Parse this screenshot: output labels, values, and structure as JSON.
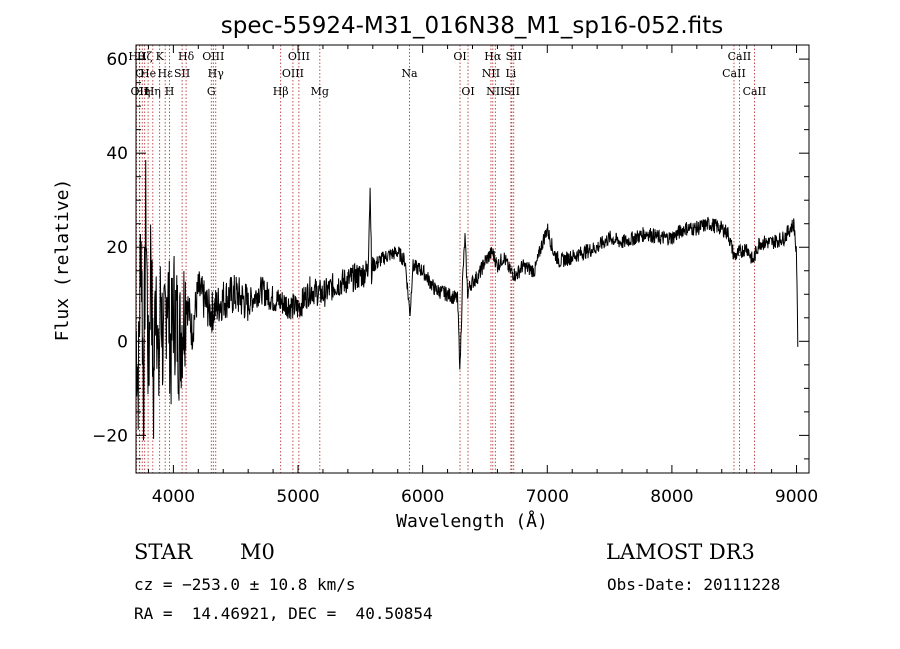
{
  "chart_data": {
    "type": "line",
    "title": "spec-55924-M31_016N38_M1_sp16-052.fits",
    "xlabel": "Wavelength (Å)",
    "ylabel": "Flux (relative)",
    "xlim": [
      3700,
      9100
    ],
    "ylim": [
      -28,
      63
    ],
    "xticks": [
      4000,
      5000,
      6000,
      7000,
      8000,
      9000
    ],
    "xtick_labels": [
      "4000",
      "5000",
      "6000",
      "7000",
      "8000",
      "9000"
    ],
    "yticks": [
      -20,
      0,
      20,
      40,
      60
    ],
    "ytick_labels": [
      "−20",
      "0",
      "20",
      "40",
      "60"
    ],
    "lines": [
      {
        "label": "Hθ",
        "wavelength": 3704,
        "row": 0
      },
      {
        "label": "OII",
        "wavelength": 3727,
        "row": 2
      },
      {
        "label": "O",
        "wavelength": 3730,
        "row": 1
      },
      {
        "label": "Hη",
        "wavelength": 3750,
        "row": 2
      },
      {
        "label": "Hζ",
        "wavelength": 3770,
        "row": 0
      },
      {
        "label": "He",
        "wavelength": 3797,
        "row": 1
      },
      {
        "label": "Hη",
        "wavelength": 3835,
        "row": 2
      },
      {
        "label": "K",
        "wavelength": 3890,
        "row": 0
      },
      {
        "label": "Hε",
        "wavelength": 3934,
        "row": 1
      },
      {
        "label": "H",
        "wavelength": 3969,
        "row": 2
      },
      {
        "label": "SII",
        "wavelength": 4070,
        "row": 1
      },
      {
        "label": "Hδ",
        "wavelength": 4102,
        "row": 0
      },
      {
        "label": "G",
        "wavelength": 4304,
        "row": 2
      },
      {
        "label": "OIII",
        "wavelength": 4320,
        "row": 0
      },
      {
        "label": "Hγ",
        "wavelength": 4340,
        "row": 1
      },
      {
        "label": "Hβ",
        "wavelength": 4861,
        "row": 2
      },
      {
        "label": "OIII",
        "wavelength": 4959,
        "row": 1
      },
      {
        "label": "OIII",
        "wavelength": 5007,
        "row": 0
      },
      {
        "label": "Mg",
        "wavelength": 5175,
        "row": 2
      },
      {
        "label": "Na",
        "wavelength": 5894,
        "row": 1
      },
      {
        "label": "OI",
        "wavelength": 6300,
        "row": 0
      },
      {
        "label": "OI",
        "wavelength": 6364,
        "row": 2
      },
      {
        "label": "NII",
        "wavelength": 6548,
        "row": 1
      },
      {
        "label": "Hα",
        "wavelength": 6563,
        "row": 0
      },
      {
        "label": "NII",
        "wavelength": 6583,
        "row": 2
      },
      {
        "label": "SII",
        "wavelength": 6716,
        "row": 2
      },
      {
        "label": "Li",
        "wavelength": 6708,
        "row": 1
      },
      {
        "label": "SII",
        "wavelength": 6731,
        "row": 0
      },
      {
        "label": "CaII",
        "wavelength": 8498,
        "row": 1
      },
      {
        "label": "CaII",
        "wavelength": 8542,
        "row": 0
      },
      {
        "label": "CaII",
        "wavelength": 8662,
        "row": 2
      }
    ],
    "spectrum_anchors": [
      [
        3700,
        2
      ],
      [
        3720,
        -8
      ],
      [
        3740,
        25
      ],
      [
        3760,
        -12
      ],
      [
        3780,
        30
      ],
      [
        3800,
        -10
      ],
      [
        3820,
        22
      ],
      [
        3840,
        -15
      ],
      [
        3860,
        18
      ],
      [
        3880,
        -10
      ],
      [
        3900,
        12
      ],
      [
        3920,
        -5
      ],
      [
        3950,
        14
      ],
      [
        3980,
        -3
      ],
      [
        4000,
        8
      ],
      [
        4050,
        0
      ],
      [
        4100,
        10
      ],
      [
        4150,
        2
      ],
      [
        4200,
        11
      ],
      [
        4300,
        6
      ],
      [
        4400,
        9
      ],
      [
        4500,
        10
      ],
      [
        4600,
        8
      ],
      [
        4700,
        11
      ],
      [
        4800,
        9
      ],
      [
        4900,
        8
      ],
      [
        5000,
        7
      ],
      [
        5100,
        11
      ],
      [
        5200,
        10
      ],
      [
        5300,
        12
      ],
      [
        5400,
        13
      ],
      [
        5500,
        14
      ],
      [
        5560,
        15
      ],
      [
        5580,
        34
      ],
      [
        5590,
        13
      ],
      [
        5600,
        16
      ],
      [
        5700,
        18
      ],
      [
        5800,
        19
      ],
      [
        5860,
        17
      ],
      [
        5890,
        8
      ],
      [
        5900,
        6
      ],
      [
        5920,
        16
      ],
      [
        6000,
        15
      ],
      [
        6100,
        11
      ],
      [
        6200,
        10
      ],
      [
        6280,
        9
      ],
      [
        6300,
        -6
      ],
      [
        6320,
        13
      ],
      [
        6340,
        22
      ],
      [
        6360,
        10
      ],
      [
        6380,
        12
      ],
      [
        6450,
        14
      ],
      [
        6500,
        17
      ],
      [
        6560,
        19
      ],
      [
        6600,
        16
      ],
      [
        6650,
        18
      ],
      [
        6700,
        15
      ],
      [
        6750,
        14
      ],
      [
        6800,
        16
      ],
      [
        6900,
        15
      ],
      [
        6950,
        20
      ],
      [
        7000,
        24
      ],
      [
        7050,
        19
      ],
      [
        7100,
        17
      ],
      [
        7200,
        18
      ],
      [
        7300,
        19
      ],
      [
        7400,
        20
      ],
      [
        7500,
        22
      ],
      [
        7600,
        21
      ],
      [
        7700,
        22
      ],
      [
        7800,
        23
      ],
      [
        7900,
        22
      ],
      [
        8000,
        22
      ],
      [
        8100,
        24
      ],
      [
        8200,
        24
      ],
      [
        8300,
        25
      ],
      [
        8400,
        24
      ],
      [
        8450,
        23
      ],
      [
        8500,
        18
      ],
      [
        8550,
        19
      ],
      [
        8600,
        20
      ],
      [
        8650,
        17
      ],
      [
        8700,
        21
      ],
      [
        8800,
        21
      ],
      [
        8900,
        22
      ],
      [
        8950,
        24
      ],
      [
        8980,
        25
      ],
      [
        9000,
        18
      ],
      [
        9010,
        0
      ]
    ]
  },
  "footer": {
    "object_class": "STAR",
    "subclass": "M0",
    "survey": "LAMOST DR3",
    "redshift": "cz = −253.0 ± 10.8 km/s",
    "obs_date": "Obs-Date: 20111228",
    "coords": "RA =  14.46921, DEC =  40.50854"
  }
}
